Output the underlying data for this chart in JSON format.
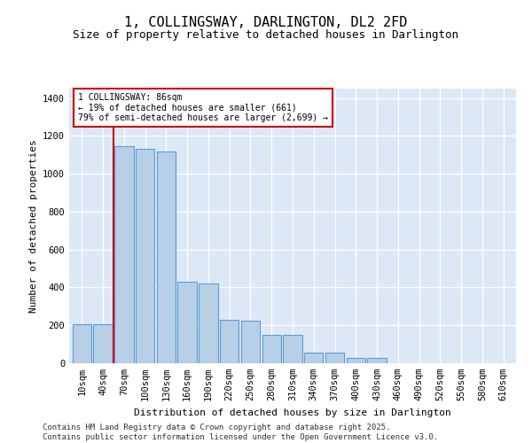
{
  "title": "1, COLLINGSWAY, DARLINGTON, DL2 2FD",
  "subtitle": "Size of property relative to detached houses in Darlington",
  "xlabel": "Distribution of detached houses by size in Darlington",
  "ylabel": "Number of detached properties",
  "categories": [
    "10sqm",
    "40sqm",
    "70sqm",
    "100sqm",
    "130sqm",
    "160sqm",
    "190sqm",
    "220sqm",
    "250sqm",
    "280sqm",
    "310sqm",
    "340sqm",
    "370sqm",
    "400sqm",
    "430sqm",
    "460sqm",
    "490sqm",
    "520sqm",
    "550sqm",
    "580sqm",
    "610sqm"
  ],
  "values": [
    207,
    207,
    1145,
    1130,
    1120,
    430,
    420,
    230,
    225,
    148,
    148,
    55,
    55,
    30,
    30,
    0,
    0,
    0,
    0,
    0,
    0
  ],
  "bar_color": "#b8cfe8",
  "bar_edge_color": "#5b9bd5",
  "background_color": "#dce8f5",
  "grid_color": "#ffffff",
  "vline_color": "#cc0000",
  "vline_x_index": 2,
  "annotation_text": "1 COLLINGSWAY: 86sqm\n← 19% of detached houses are smaller (661)\n79% of semi-detached houses are larger (2,699) →",
  "annotation_box_color": "#cc0000",
  "ylim": [
    0,
    1450
  ],
  "yticks": [
    0,
    200,
    400,
    600,
    800,
    1000,
    1200,
    1400
  ],
  "footer_line1": "Contains HM Land Registry data © Crown copyright and database right 2025.",
  "footer_line2": "Contains public sector information licensed under the Open Government Licence v3.0.",
  "title_fontsize": 11,
  "subtitle_fontsize": 9,
  "axis_label_fontsize": 8,
  "tick_fontsize": 7.5,
  "footer_fontsize": 6.5
}
